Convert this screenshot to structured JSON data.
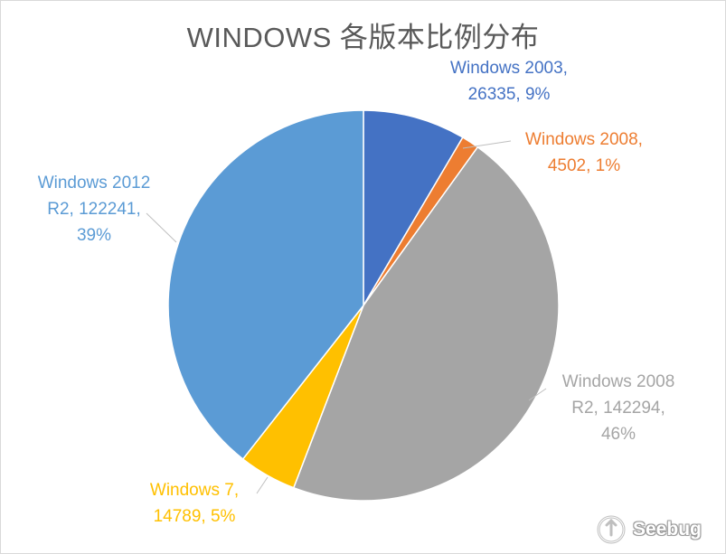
{
  "chart_data": {
    "type": "pie",
    "title": "WINDOWS 各版本比例分布",
    "slices": [
      {
        "name": "Windows 2003",
        "value": 26335,
        "percent": "9%",
        "color": "#4472c4",
        "label_lines": [
          "Windows 2003,",
          "26335, 9%"
        ]
      },
      {
        "name": "Windows 2008",
        "value": 4502,
        "percent": "1%",
        "color": "#ed7d31",
        "label_lines": [
          "Windows 2008,",
          "4502, 1%"
        ]
      },
      {
        "name": "Windows 2008 R2",
        "value": 142294,
        "percent": "46%",
        "color": "#a5a5a5",
        "label_lines": [
          "Windows 2008",
          "R2, 142294,",
          "46%"
        ]
      },
      {
        "name": "Windows 7",
        "value": 14789,
        "percent": "5%",
        "color": "#ffc000",
        "label_lines": [
          "Windows 7,",
          "14789, 5%"
        ]
      },
      {
        "name": "Windows 2012 R2",
        "value": 122241,
        "percent": "39%",
        "color": "#5b9bd5",
        "label_lines": [
          "Windows 2012",
          "R2, 122241,",
          "39%"
        ]
      }
    ],
    "start_angle": "12 o'clock",
    "direction": "clockwise",
    "legend": "none",
    "data_labels": "outside with leader lines"
  },
  "watermark": {
    "text": "Seebug"
  }
}
